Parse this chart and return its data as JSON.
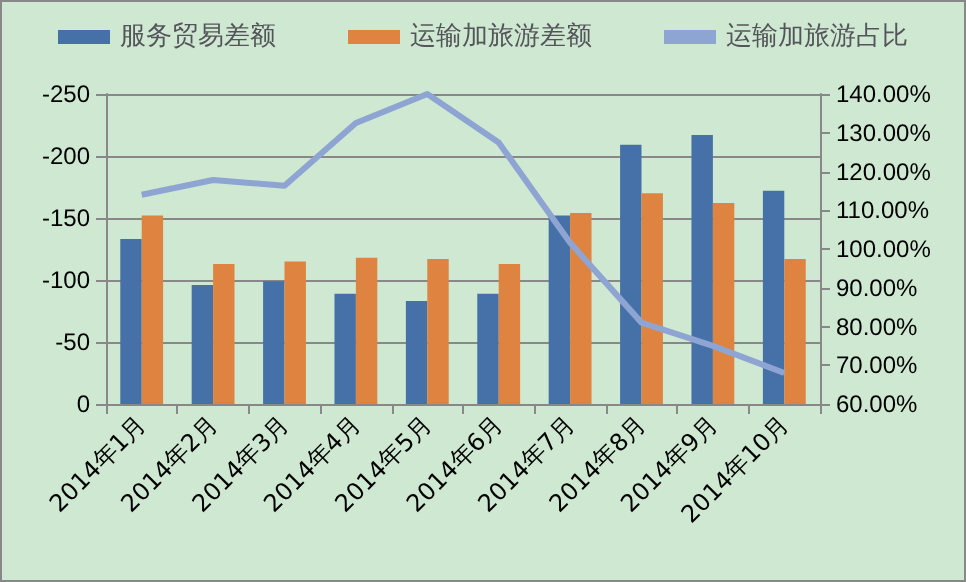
{
  "chart_data": {
    "type": "bar",
    "categories": [
      "2014年1月",
      "2014年2月",
      "2014年3月",
      "2014年4月",
      "2014年5月",
      "2014年6月",
      "2014年7月",
      "2014年8月",
      "2014年9月",
      "2014年10月"
    ],
    "series": [
      {
        "name": "服务贸易差额",
        "color": "#4671a8",
        "values": [
          -133,
          -96,
          -99,
          -89,
          -83,
          -89,
          -152,
          -209,
          -217,
          -172
        ]
      },
      {
        "name": "运输加旅游差额",
        "color": "#de8440",
        "values": [
          -152,
          -113,
          -115,
          -118,
          -117,
          -113,
          -154,
          -170,
          -162,
          -117
        ]
      },
      {
        "name": "运输加旅游占比",
        "type": "line",
        "axis": "y2",
        "color": "#8ea4d2",
        "values": [
          114,
          117.8,
          116.3,
          132.5,
          140,
          127.5,
          101.6,
          81,
          75,
          68
        ]
      }
    ],
    "ylim": [
      0,
      -250
    ],
    "yticks": [
      0,
      -50,
      -100,
      -150,
      -200,
      -250
    ],
    "y2lim": [
      60,
      140
    ],
    "y2ticks": [
      {
        "value": 60,
        "label": "60.00%"
      },
      {
        "value": 70,
        "label": "70.00%"
      },
      {
        "value": 80,
        "label": "80.00%"
      },
      {
        "value": 90,
        "label": "90.00%"
      },
      {
        "value": 100,
        "label": "100.00%"
      },
      {
        "value": 110,
        "label": "110.00%"
      },
      {
        "value": 120,
        "label": "120.00%"
      },
      {
        "value": 130,
        "label": "130.00%"
      },
      {
        "value": 140,
        "label": "140.00%"
      }
    ],
    "grid": "y",
    "legend": "top",
    "marker": "none"
  }
}
